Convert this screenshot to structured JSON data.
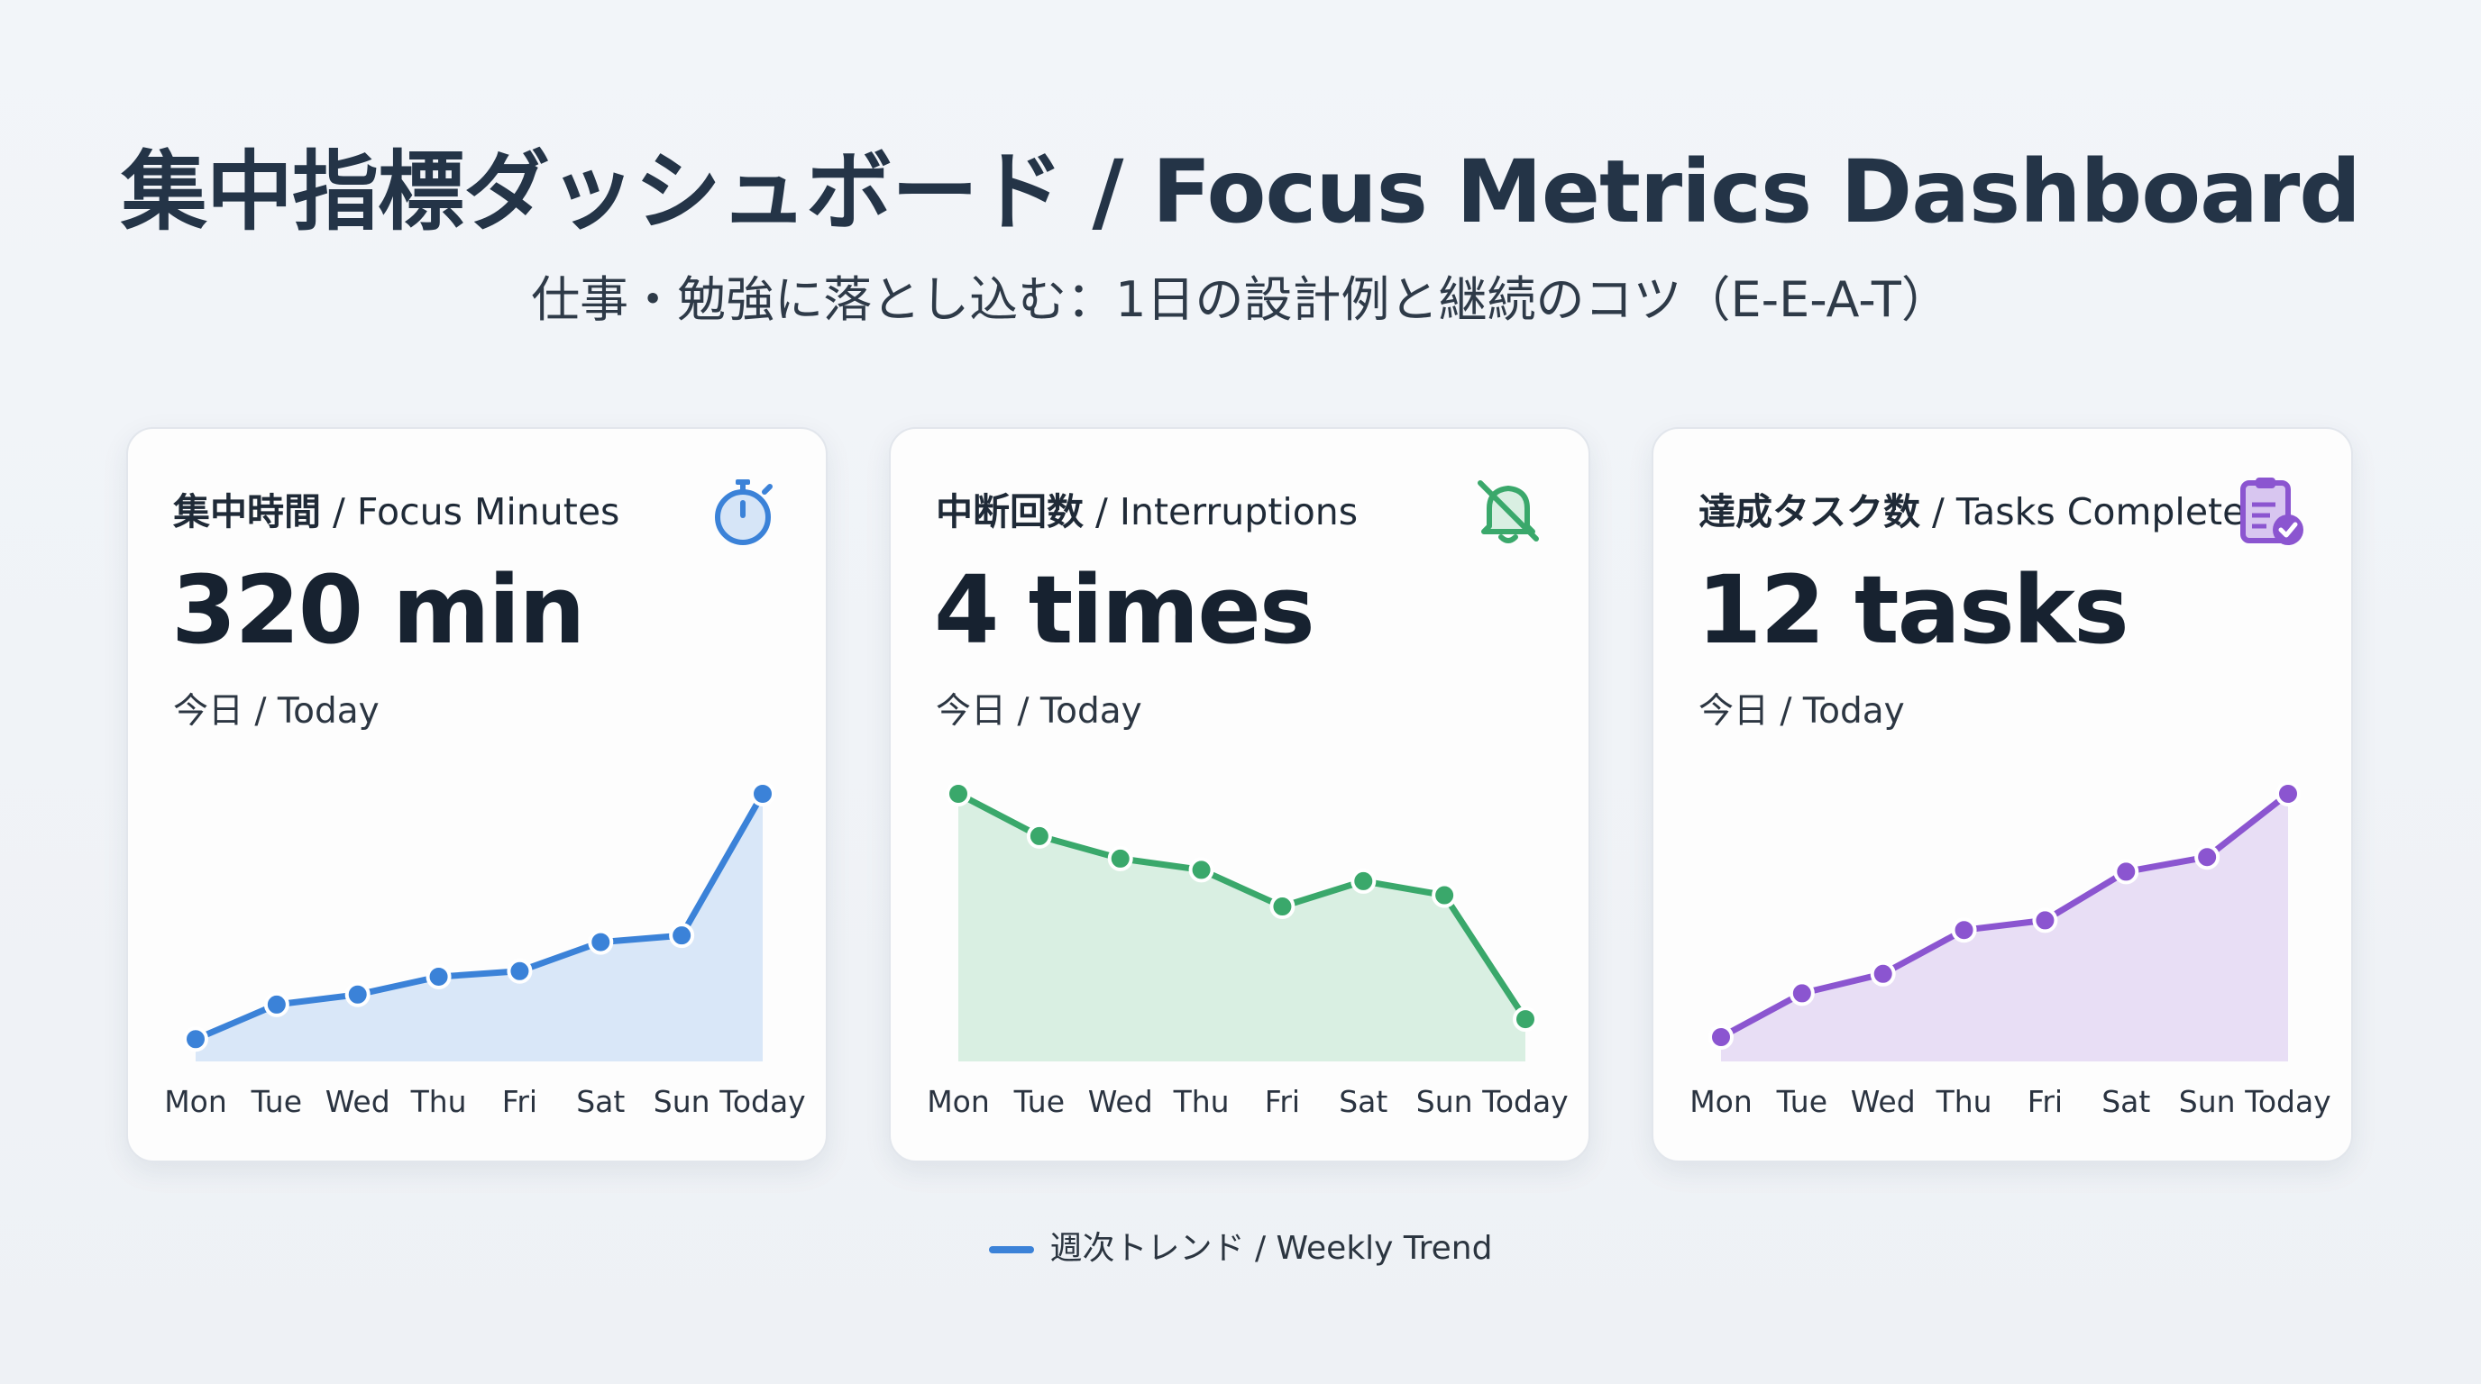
{
  "header": {
    "title": "集中指標ダッシュボード / Focus Metrics Dashboard",
    "subtitle": "仕事・勉強に落とし込む：1日の設計例と継続のコツ（E-E-A-T）"
  },
  "legend": {
    "label": "週次トレンド / Weekly Trend",
    "color": "#3b82d8"
  },
  "cards": [
    {
      "title_ja": "集中時間",
      "title_en": " / Focus Minutes",
      "value": "320 min",
      "sub": "今日 / Today",
      "icon": "stopwatch-icon",
      "color": "#3b82d8",
      "fill": "#d9e7f8"
    },
    {
      "title_ja": "中断回数",
      "title_en": " / Interruptions",
      "value": "4 times",
      "sub": "今日 / Today",
      "icon": "bell-off-icon",
      "color": "#3aa86b",
      "fill": "#d9efe2"
    },
    {
      "title_ja": "達成タスク数",
      "title_en": " / Tasks Completed",
      "value": "12 tasks",
      "sub": "今日 / Today",
      "icon": "clipboard-check-icon",
      "color": "#8b55d0",
      "fill": "#e8def5"
    }
  ],
  "chart_data": [
    {
      "type": "area",
      "categories": [
        "Mon",
        "Tue",
        "Wed",
        "Thu",
        "Fri",
        "Sat",
        "Sun",
        "Today"
      ],
      "values": [
        100,
        131,
        140,
        156,
        161,
        187,
        193,
        320
      ],
      "ylim": [
        80,
        320
      ],
      "grid": false
    },
    {
      "type": "area",
      "categories": [
        "Mon",
        "Tue",
        "Wed",
        "Thu",
        "Fri",
        "Sat",
        "Sun",
        "Today"
      ],
      "values": [
        12,
        10.5,
        9.7,
        9.3,
        8,
        8.9,
        8.4,
        4
      ],
      "ylim": [
        2.5,
        12
      ],
      "grid": false
    },
    {
      "type": "area",
      "categories": [
        "Mon",
        "Tue",
        "Wed",
        "Thu",
        "Fri",
        "Sat",
        "Sun",
        "Today"
      ],
      "values": [
        2,
        3.8,
        4.6,
        6.4,
        6.8,
        8.8,
        9.4,
        12
      ],
      "ylim": [
        1,
        12
      ],
      "grid": false
    }
  ]
}
